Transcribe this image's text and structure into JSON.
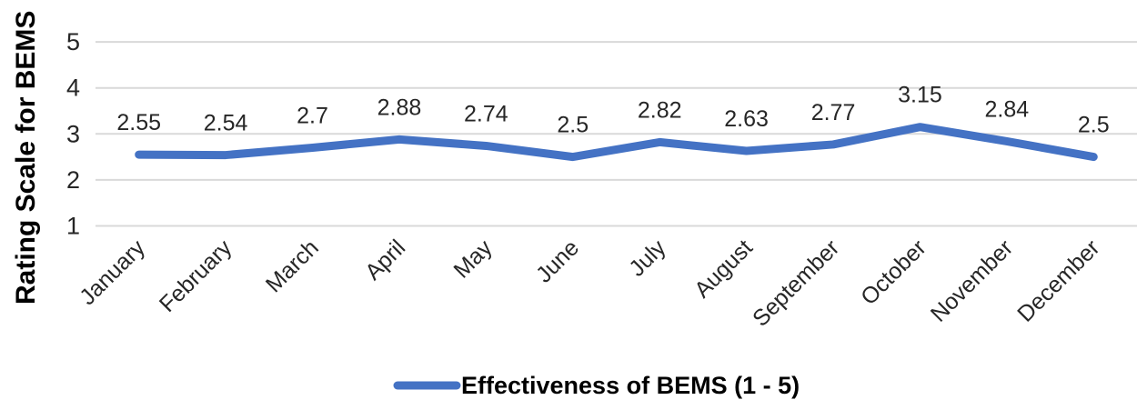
{
  "chart_data": {
    "type": "line",
    "title": "",
    "xlabel": "",
    "ylabel": "Rating Scale for BEMS",
    "categories": [
      "January",
      "February",
      "March",
      "April",
      "May",
      "June",
      "July",
      "August",
      "September",
      "October",
      "November",
      "December"
    ],
    "series": [
      {
        "name": "Effectiveness of BEMS (1 - 5)",
        "values": [
          2.55,
          2.54,
          2.7,
          2.88,
          2.74,
          2.5,
          2.82,
          2.63,
          2.77,
          3.15,
          2.84,
          2.5
        ],
        "labels": [
          "2.55",
          "2.54",
          "2.7",
          "2.88",
          "2.74",
          "2.5",
          "2.82",
          "2.63",
          "2.77",
          "3.15",
          "2.84",
          "2.5"
        ]
      }
    ],
    "ylim": [
      1,
      5
    ],
    "yticks": [
      "5",
      "4",
      "3",
      "2",
      "1"
    ],
    "grid": true,
    "data_labels": true,
    "legend_position": "bottom-center",
    "colors": {
      "series_line": "#4472C4",
      "gridline": "#D9D9D9",
      "tick_text": "#262626",
      "data_label_text": "#262626",
      "axis_title_text": "#000000",
      "legend_text": "#000000",
      "background": "#ffffff"
    }
  }
}
